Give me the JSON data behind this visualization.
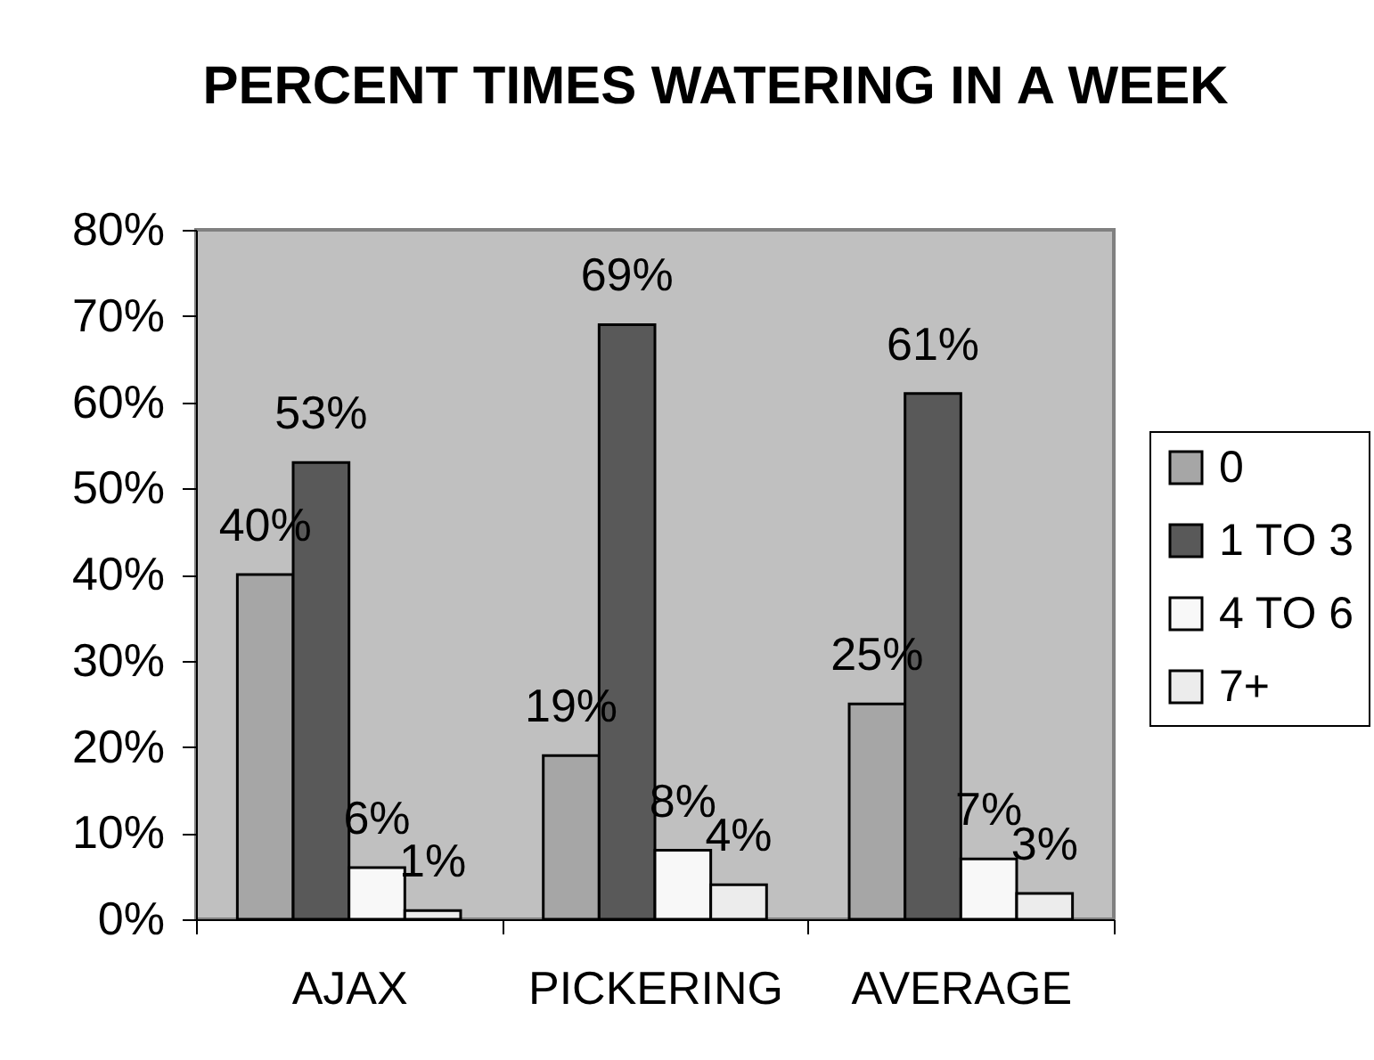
{
  "chart_data": {
    "type": "bar",
    "title": "PERCENT TIMES WATERING IN A WEEK",
    "categories": [
      "AJAX",
      "PICKERING",
      "AVERAGE"
    ],
    "series": [
      {
        "name": "0",
        "color": "#a6a6a6",
        "values": [
          40,
          19,
          25
        ],
        "value_labels": [
          "40%",
          "19%",
          "25%"
        ]
      },
      {
        "name": "1 TO 3",
        "color": "#595959",
        "values": [
          53,
          69,
          61
        ],
        "value_labels": [
          "53%",
          "69%",
          "61%"
        ]
      },
      {
        "name": "4 TO 6",
        "color": "#f8f8f8",
        "values": [
          6,
          8,
          7
        ],
        "value_labels": [
          "6%",
          "8%",
          "7%"
        ]
      },
      {
        "name": "7+",
        "color": "#ececec",
        "values": [
          1,
          4,
          3
        ],
        "value_labels": [
          "1%",
          "4%",
          "3%"
        ]
      }
    ],
    "ylim": [
      0,
      80
    ],
    "yticks": [
      {
        "value": 0,
        "label": "0%"
      },
      {
        "value": 10,
        "label": "10%"
      },
      {
        "value": 20,
        "label": "20%"
      },
      {
        "value": 30,
        "label": "30%"
      },
      {
        "value": 40,
        "label": "40%"
      },
      {
        "value": 50,
        "label": "50%"
      },
      {
        "value": 60,
        "label": "60%"
      },
      {
        "value": 70,
        "label": "70%"
      },
      {
        "value": 80,
        "label": "80%"
      }
    ],
    "grid": false,
    "legend": "right"
  }
}
